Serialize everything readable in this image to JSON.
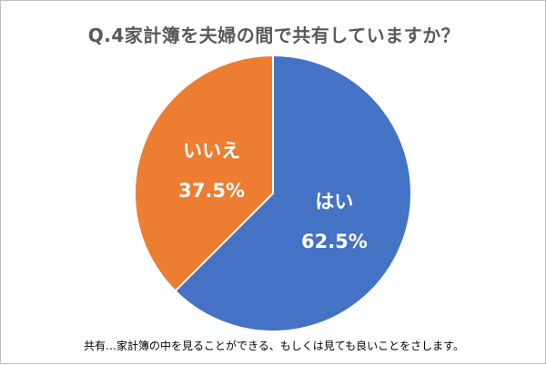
{
  "chart_data": {
    "type": "pie",
    "title": "Q.4家計簿を夫婦の間で共有していますか？",
    "slices": [
      {
        "label": "はい",
        "value": 62.5,
        "value_label": "62.5%",
        "color": "#4472c4"
      },
      {
        "label": "いいえ",
        "value": 37.5,
        "value_label": "37.5%",
        "color": "#ed7d31"
      }
    ],
    "start": "12 o'clock, clockwise",
    "legend": "none"
  },
  "footnote": "共有…家計簿の中を見ることができる、もしくは見ても良いことをさします。"
}
